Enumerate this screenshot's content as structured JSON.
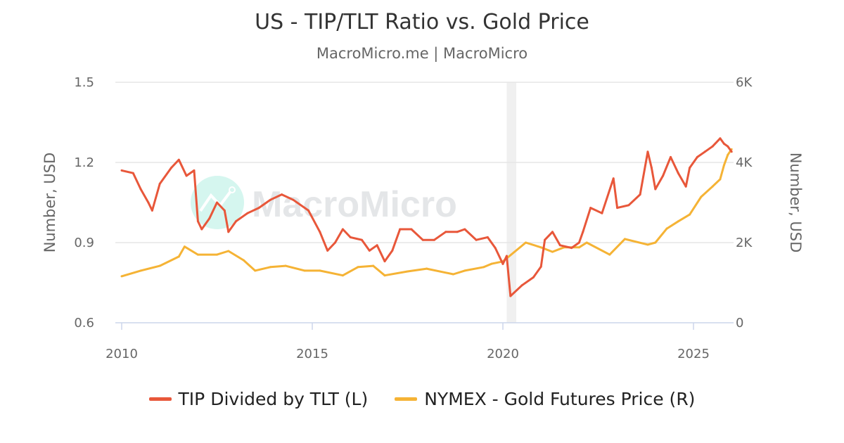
{
  "chart_data": {
    "type": "line",
    "title": "US - TIP/TLT Ratio vs. Gold Price",
    "subtitle": "MacroMicro.me | MacroMicro",
    "watermark": "MacroMicro",
    "xlim": [
      2009.8,
      2026.05
    ],
    "x_ticks": [
      "2010",
      "2015",
      "2020",
      "2025"
    ],
    "x_tick_values": [
      2010,
      2015,
      2020,
      2025
    ],
    "y_left": {
      "label": "Number, USD",
      "lim": [
        0.6,
        1.5
      ],
      "ticks": [
        "0.6",
        "0.9",
        "1.2",
        "1.5"
      ],
      "tick_values": [
        0.6,
        0.9,
        1.2,
        1.5
      ]
    },
    "y_right": {
      "label": "Number, USD",
      "lim": [
        0,
        6000
      ],
      "ticks": [
        "0",
        "2K",
        "4K",
        "6K"
      ],
      "tick_values": [
        0,
        2000,
        4000,
        6000
      ]
    },
    "grid": true,
    "legend_position": "bottom",
    "recession_shading": [
      [
        2020.1,
        2020.35
      ]
    ],
    "series": [
      {
        "name": "TIP Divided by TLT (L)",
        "axis": "left",
        "color": "#e8573a",
        "x": [
          2010.0,
          2010.3,
          2010.5,
          2010.7,
          2010.8,
          2011.0,
          2011.3,
          2011.5,
          2011.7,
          2011.9,
          2012.0,
          2012.1,
          2012.3,
          2012.5,
          2012.7,
          2012.8,
          2013.0,
          2013.3,
          2013.6,
          2013.9,
          2014.2,
          2014.5,
          2014.9,
          2015.2,
          2015.4,
          2015.6,
          2015.8,
          2016.0,
          2016.3,
          2016.5,
          2016.7,
          2016.9,
          2017.1,
          2017.3,
          2017.6,
          2017.9,
          2018.2,
          2018.5,
          2018.8,
          2019.0,
          2019.3,
          2019.6,
          2019.8,
          2020.0,
          2020.1,
          2020.2,
          2020.5,
          2020.8,
          2021.0,
          2021.1,
          2021.3,
          2021.5,
          2021.8,
          2022.0,
          2022.1,
          2022.3,
          2022.6,
          2022.9,
          2023.0,
          2023.3,
          2023.6,
          2023.8,
          2023.9,
          2024.0,
          2024.2,
          2024.4,
          2024.6,
          2024.8,
          2024.9,
          2025.1,
          2025.3,
          2025.5,
          2025.7,
          2025.8,
          2025.9,
          2026.0
        ],
        "y": [
          1.17,
          1.16,
          1.1,
          1.05,
          1.02,
          1.12,
          1.18,
          1.21,
          1.15,
          1.17,
          0.98,
          0.95,
          0.99,
          1.05,
          1.02,
          0.94,
          0.98,
          1.01,
          1.03,
          1.06,
          1.08,
          1.06,
          1.02,
          0.94,
          0.87,
          0.9,
          0.95,
          0.92,
          0.91,
          0.87,
          0.89,
          0.83,
          0.87,
          0.95,
          0.95,
          0.91,
          0.91,
          0.94,
          0.94,
          0.95,
          0.91,
          0.92,
          0.88,
          0.82,
          0.85,
          0.7,
          0.74,
          0.77,
          0.81,
          0.91,
          0.94,
          0.89,
          0.88,
          0.9,
          0.94,
          1.03,
          1.01,
          1.14,
          1.03,
          1.04,
          1.08,
          1.24,
          1.18,
          1.1,
          1.15,
          1.22,
          1.16,
          1.11,
          1.18,
          1.22,
          1.24,
          1.26,
          1.29,
          1.27,
          1.26,
          1.24
        ]
      },
      {
        "name": "NYMEX - Gold Futures Price (R)",
        "axis": "right",
        "color": "#f5b335",
        "x": [
          2010.0,
          2010.5,
          2011.0,
          2011.5,
          2011.65,
          2012.0,
          2012.5,
          2012.8,
          2013.2,
          2013.5,
          2013.9,
          2014.3,
          2014.8,
          2015.2,
          2015.8,
          2016.2,
          2016.6,
          2016.9,
          2017.5,
          2018.0,
          2018.7,
          2019.0,
          2019.5,
          2019.7,
          2020.0,
          2020.6,
          2021.0,
          2021.3,
          2021.6,
          2022.0,
          2022.2,
          2022.8,
          2023.2,
          2023.8,
          2024.0,
          2024.3,
          2024.6,
          2024.9,
          2025.2,
          2025.5,
          2025.7,
          2025.8,
          2025.9,
          2026.0
        ],
        "y": [
          1160,
          1300,
          1420,
          1650,
          1900,
          1700,
          1700,
          1790,
          1560,
          1300,
          1390,
          1420,
          1300,
          1300,
          1180,
          1390,
          1420,
          1180,
          1280,
          1350,
          1210,
          1300,
          1390,
          1470,
          1530,
          2000,
          1880,
          1770,
          1880,
          1880,
          2000,
          1700,
          2090,
          1950,
          2000,
          2350,
          2530,
          2700,
          3140,
          3400,
          3580,
          3930,
          4190,
          4330
        ]
      }
    ]
  }
}
